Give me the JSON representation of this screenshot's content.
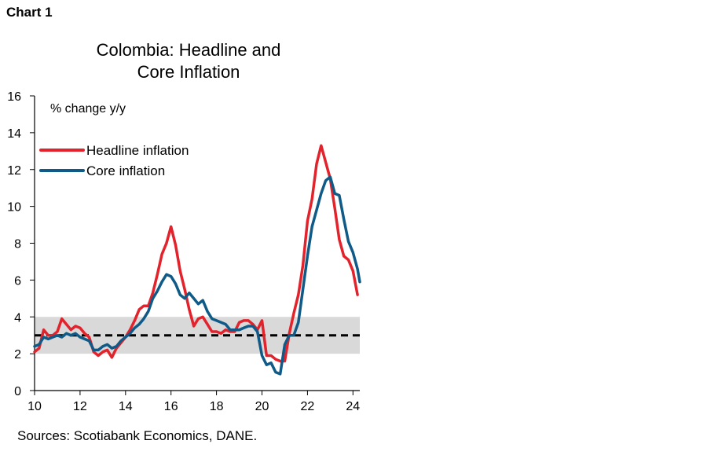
{
  "header": {
    "chart_label": "Chart 1"
  },
  "footer": {
    "source": "Sources: Scotiabank Economics, DANE."
  },
  "chart_data": {
    "type": "line",
    "title": "Colombia: Headline and\nCore Inflation",
    "title_lines": [
      "Colombia: Headline and",
      "Core Inflation"
    ],
    "unit_label": "% change y/y",
    "xlabel": "",
    "ylabel": "",
    "xlim": [
      10,
      24.3
    ],
    "ylim": [
      0,
      16
    ],
    "x_ticks": [
      10,
      12,
      14,
      16,
      18,
      20,
      22,
      24
    ],
    "x_tick_labels": [
      "10",
      "12",
      "14",
      "16",
      "18",
      "20",
      "22",
      "24"
    ],
    "y_ticks": [
      0,
      2,
      4,
      6,
      8,
      10,
      12,
      14,
      16
    ],
    "y_tick_labels": [
      "0",
      "2",
      "4",
      "6",
      "8",
      "10",
      "12",
      "14",
      "16"
    ],
    "grid": false,
    "legend_position": "top-left",
    "target_band": {
      "low": 2,
      "high": 4,
      "color": "#d9d9d9"
    },
    "target_line": {
      "value": 3,
      "color": "#000000",
      "style": "dashed"
    },
    "series": [
      {
        "name": "Headline inflation",
        "color": "#e3232c",
        "points": [
          [
            10.0,
            2.1
          ],
          [
            10.2,
            2.3
          ],
          [
            10.4,
            3.3
          ],
          [
            10.6,
            3.0
          ],
          [
            10.8,
            3.0
          ],
          [
            11.0,
            3.2
          ],
          [
            11.2,
            3.9
          ],
          [
            11.4,
            3.6
          ],
          [
            11.6,
            3.3
          ],
          [
            11.8,
            3.5
          ],
          [
            12.0,
            3.4
          ],
          [
            12.2,
            3.1
          ],
          [
            12.4,
            2.9
          ],
          [
            12.6,
            2.1
          ],
          [
            12.8,
            1.9
          ],
          [
            13.0,
            2.1
          ],
          [
            13.2,
            2.2
          ],
          [
            13.4,
            1.8
          ],
          [
            13.6,
            2.3
          ],
          [
            13.8,
            2.6
          ],
          [
            14.0,
            2.9
          ],
          [
            14.2,
            3.3
          ],
          [
            14.4,
            3.8
          ],
          [
            14.6,
            4.4
          ],
          [
            14.8,
            4.6
          ],
          [
            15.0,
            4.6
          ],
          [
            15.2,
            5.3
          ],
          [
            15.4,
            6.3
          ],
          [
            15.6,
            7.4
          ],
          [
            15.8,
            8.0
          ],
          [
            16.0,
            8.9
          ],
          [
            16.2,
            7.9
          ],
          [
            16.4,
            6.5
          ],
          [
            16.6,
            5.5
          ],
          [
            16.8,
            4.4
          ],
          [
            17.0,
            3.5
          ],
          [
            17.2,
            3.9
          ],
          [
            17.4,
            4.0
          ],
          [
            17.6,
            3.6
          ],
          [
            17.8,
            3.2
          ],
          [
            18.0,
            3.2
          ],
          [
            18.2,
            3.1
          ],
          [
            18.4,
            3.3
          ],
          [
            18.6,
            3.2
          ],
          [
            18.8,
            3.2
          ],
          [
            19.0,
            3.7
          ],
          [
            19.2,
            3.8
          ],
          [
            19.4,
            3.8
          ],
          [
            19.6,
            3.6
          ],
          [
            19.8,
            3.3
          ],
          [
            20.0,
            3.8
          ],
          [
            20.2,
            1.9
          ],
          [
            20.4,
            1.9
          ],
          [
            20.6,
            1.7
          ],
          [
            20.8,
            1.6
          ],
          [
            21.0,
            1.6
          ],
          [
            21.2,
            3.1
          ],
          [
            21.4,
            4.2
          ],
          [
            21.6,
            5.2
          ],
          [
            21.8,
            6.8
          ],
          [
            22.0,
            9.2
          ],
          [
            22.2,
            10.4
          ],
          [
            22.4,
            12.3
          ],
          [
            22.6,
            13.3
          ],
          [
            22.8,
            12.4
          ],
          [
            23.0,
            11.5
          ],
          [
            23.2,
            9.9
          ],
          [
            23.4,
            8.2
          ],
          [
            23.6,
            7.3
          ],
          [
            23.8,
            7.1
          ],
          [
            24.0,
            6.5
          ],
          [
            24.2,
            5.2
          ]
        ]
      },
      {
        "name": "Core inflation",
        "color": "#0f5a87",
        "points": [
          [
            10.0,
            2.4
          ],
          [
            10.2,
            2.5
          ],
          [
            10.4,
            2.9
          ],
          [
            10.6,
            2.8
          ],
          [
            10.8,
            2.9
          ],
          [
            11.0,
            3.0
          ],
          [
            11.2,
            2.9
          ],
          [
            11.4,
            3.1
          ],
          [
            11.6,
            3.0
          ],
          [
            11.8,
            3.1
          ],
          [
            12.0,
            2.9
          ],
          [
            12.2,
            2.8
          ],
          [
            12.4,
            2.7
          ],
          [
            12.6,
            2.2
          ],
          [
            12.8,
            2.2
          ],
          [
            13.0,
            2.4
          ],
          [
            13.2,
            2.5
          ],
          [
            13.4,
            2.3
          ],
          [
            13.6,
            2.4
          ],
          [
            13.8,
            2.7
          ],
          [
            14.0,
            2.9
          ],
          [
            14.2,
            3.1
          ],
          [
            14.4,
            3.4
          ],
          [
            14.6,
            3.6
          ],
          [
            14.8,
            3.9
          ],
          [
            15.0,
            4.3
          ],
          [
            15.2,
            5.0
          ],
          [
            15.4,
            5.4
          ],
          [
            15.6,
            5.9
          ],
          [
            15.8,
            6.3
          ],
          [
            16.0,
            6.2
          ],
          [
            16.2,
            5.8
          ],
          [
            16.4,
            5.2
          ],
          [
            16.6,
            5.0
          ],
          [
            16.8,
            5.3
          ],
          [
            17.0,
            5.0
          ],
          [
            17.2,
            4.7
          ],
          [
            17.4,
            4.9
          ],
          [
            17.6,
            4.3
          ],
          [
            17.8,
            3.9
          ],
          [
            18.0,
            3.8
          ],
          [
            18.2,
            3.7
          ],
          [
            18.4,
            3.6
          ],
          [
            18.6,
            3.3
          ],
          [
            18.8,
            3.3
          ],
          [
            19.0,
            3.3
          ],
          [
            19.2,
            3.4
          ],
          [
            19.4,
            3.5
          ],
          [
            19.6,
            3.5
          ],
          [
            19.8,
            3.2
          ],
          [
            20.0,
            1.9
          ],
          [
            20.2,
            1.4
          ],
          [
            20.4,
            1.5
          ],
          [
            20.6,
            1.0
          ],
          [
            20.8,
            0.9
          ],
          [
            21.0,
            2.5
          ],
          [
            21.2,
            3.0
          ],
          [
            21.4,
            3.0
          ],
          [
            21.6,
            3.7
          ],
          [
            21.8,
            5.5
          ],
          [
            22.0,
            7.3
          ],
          [
            22.2,
            8.9
          ],
          [
            22.4,
            9.8
          ],
          [
            22.6,
            10.7
          ],
          [
            22.8,
            11.4
          ],
          [
            23.0,
            11.6
          ],
          [
            23.2,
            10.7
          ],
          [
            23.4,
            10.6
          ],
          [
            23.6,
            9.3
          ],
          [
            23.8,
            8.1
          ],
          [
            24.0,
            7.5
          ],
          [
            24.2,
            6.6
          ],
          [
            24.3,
            5.9
          ]
        ]
      }
    ]
  }
}
